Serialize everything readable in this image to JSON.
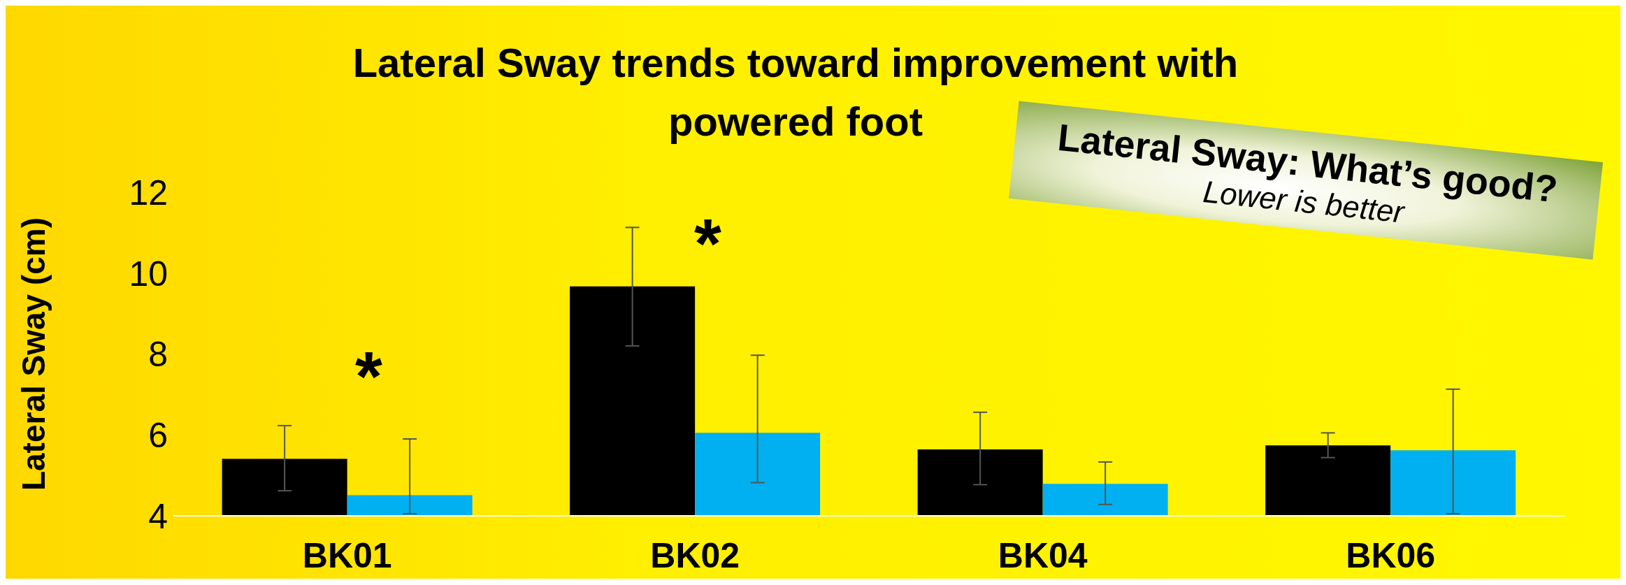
{
  "chart_data": {
    "type": "bar",
    "title": "Lateral Sway trends toward improvement with powered foot",
    "ylabel": "Lateral Sway (cm)",
    "categories": [
      "BK01",
      "BK02",
      "BK04",
      "BK06"
    ],
    "series": [
      {
        "color": "#000000",
        "values": [
          5.41,
          9.67,
          5.64,
          5.74
        ],
        "errors": [
          [
            4.62,
            6.23
          ],
          [
            8.2,
            11.13
          ],
          [
            4.77,
            6.56
          ],
          [
            5.44,
            6.05
          ]
        ]
      },
      {
        "color": "#00b0f0",
        "values": [
          4.51,
          6.05,
          4.79,
          5.62
        ],
        "errors": [
          [
            4.05,
            5.9
          ],
          [
            4.82,
            7.97
          ],
          [
            4.28,
            5.33
          ],
          [
            4.05,
            7.13
          ]
        ]
      }
    ],
    "ylim": [
      4,
      12
    ],
    "yticks": [
      4,
      6,
      8,
      10,
      12
    ],
    "grid": false,
    "legend": false,
    "annotations": [
      "*",
      "*",
      "Lateral Sway: What’s good?",
      "Lower is better"
    ]
  }
}
